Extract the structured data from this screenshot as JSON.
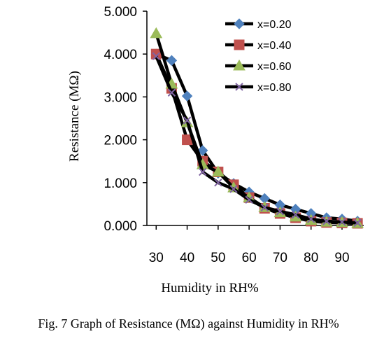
{
  "chart_data": {
    "type": "line",
    "caption": "Fig. 7 Graph of Resistance (MΩ) against Humidity in RH%",
    "xlabel": "Humidity in RH%",
    "ylabel": "Resistance (MΩ)",
    "xlim": [
      27,
      97
    ],
    "ylim": [
      0,
      5
    ],
    "xticks": [
      "30",
      "40",
      "50",
      "60",
      "70",
      "80",
      "90"
    ],
    "yticks": [
      "0.000",
      "1.000",
      "2.000",
      "3.000",
      "4.000",
      "5.000"
    ],
    "x": [
      30,
      35,
      40,
      45,
      50,
      55,
      60,
      65,
      70,
      75,
      80,
      85,
      90,
      95
    ],
    "legend_position": "top-right",
    "series": [
      {
        "name": "x=0.20",
        "color": "#4f81bd",
        "marker": "diamond",
        "values": [
          4.0,
          3.85,
          3.02,
          1.75,
          1.22,
          0.98,
          0.78,
          0.63,
          0.48,
          0.38,
          0.28,
          0.18,
          0.15,
          0.1
        ]
      },
      {
        "name": "x=0.40",
        "color": "#c0504d",
        "marker": "square",
        "values": [
          4.0,
          3.2,
          2.0,
          1.5,
          1.25,
          0.95,
          0.65,
          0.4,
          0.28,
          0.18,
          0.1,
          0.07,
          0.06,
          0.05
        ]
      },
      {
        "name": "x=0.60",
        "color": "#9bbb59",
        "marker": "triangle",
        "values": [
          4.48,
          3.3,
          2.4,
          1.42,
          1.25,
          0.88,
          0.65,
          0.42,
          0.3,
          0.2,
          0.12,
          0.08,
          0.07,
          0.05
        ]
      },
      {
        "name": "x=0.80",
        "color": "#8064a2",
        "marker": "x",
        "values": [
          3.95,
          3.1,
          2.45,
          1.25,
          1.0,
          0.85,
          0.6,
          0.42,
          0.33,
          0.25,
          0.15,
          0.1,
          0.08,
          0.06
        ]
      }
    ]
  }
}
